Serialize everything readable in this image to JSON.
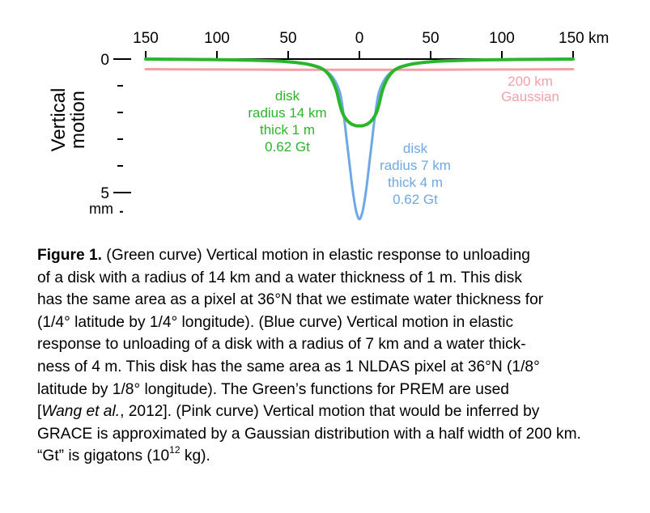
{
  "chart_data": {
    "type": "line",
    "xlabel": "",
    "x_unit": "km",
    "x_ticks": [
      "150",
      "100",
      "50",
      "0",
      "50",
      "100",
      "150 km"
    ],
    "xlim": [
      -150,
      150
    ],
    "ylabel": "Vertical motion",
    "y_unit": "mm",
    "y_ticks": [
      "0",
      "5"
    ],
    "ylim": [
      0,
      7
    ],
    "y_inverted": true,
    "series": [
      {
        "color": "#2bb52b",
        "x": [
          -150,
          -100,
          -60,
          -40,
          -30,
          -25,
          -22,
          -19,
          -16,
          -14,
          -12,
          -10,
          -8,
          -6,
          -4,
          -2,
          0,
          2,
          4,
          6,
          8,
          10,
          12,
          14,
          16,
          19,
          22,
          25,
          30,
          40,
          60,
          100,
          150
        ],
        "values": [
          0.0,
          0.02,
          0.07,
          0.16,
          0.28,
          0.4,
          0.55,
          0.8,
          1.2,
          1.65,
          2.0,
          2.2,
          2.33,
          2.42,
          2.47,
          2.5,
          2.5,
          2.5,
          2.47,
          2.42,
          2.33,
          2.2,
          2.0,
          1.65,
          1.2,
          0.8,
          0.55,
          0.4,
          0.28,
          0.16,
          0.07,
          0.02,
          0.0
        ]
      },
      {
        "color": "#6fa8e6",
        "x": [
          -150,
          -100,
          -60,
          -40,
          -30,
          -20,
          -14,
          -11,
          -9,
          -7,
          -5,
          -3,
          -1.5,
          0,
          1.5,
          3,
          5,
          7,
          9,
          11,
          14,
          20,
          30,
          40,
          60,
          100,
          150
        ],
        "values": [
          0.0,
          0.02,
          0.07,
          0.16,
          0.28,
          0.6,
          1.2,
          2.1,
          3.0,
          3.9,
          4.8,
          5.5,
          5.85,
          6.0,
          5.85,
          5.5,
          4.8,
          3.9,
          3.0,
          2.1,
          1.2,
          0.6,
          0.28,
          0.16,
          0.07,
          0.02,
          0.0
        ]
      },
      {
        "color": "#f2a1a8",
        "x": [
          -150,
          -100,
          -50,
          0,
          50,
          100,
          150
        ],
        "values": [
          0.38,
          0.39,
          0.4,
          0.4,
          0.4,
          0.39,
          0.38
        ]
      }
    ],
    "annotations": {
      "green": [
        "disk",
        "radius 14 km",
        "thick 1 m",
        "0.62 Gt"
      ],
      "blue": [
        "disk",
        "radius 7 km",
        "thick 4 m",
        "0.62 Gt"
      ],
      "pink": [
        "200 km",
        "Gaussian"
      ]
    },
    "grid": false,
    "legend": "none"
  },
  "caption": {
    "label": "Figure 1.",
    "lines": [
      " (Green curve) Vertical motion in elastic response to unloading",
      "of a disk with a radius of 14 km and a water thickness of 1 m. This disk",
      "has the same area as a pixel at 36°N that we estimate water thickness for",
      "(1/4° latitude by 1/4° longitude). (Blue curve) Vertical motion in elastic",
      "response to unloading of a disk with a radius of 7 km and a water thick-",
      "ness of 4 m. This disk has the same area as 1 NLDAS pixel at 36°N (1/8°",
      "latitude by 1/8° longitude). The Green’s functions for PREM are used"
    ],
    "citation_pre": "[",
    "citation_authors": "Wang et al.",
    "citation_post": ", 2012]. (Pink curve) Vertical motion that would be inferred by",
    "line_9": "GRACE is approximated by a Gaussian distribution with a half width of 200 km.",
    "last_pre": "“Gt” is gigatons (10",
    "last_sup": "12",
    "last_post": " kg)."
  }
}
